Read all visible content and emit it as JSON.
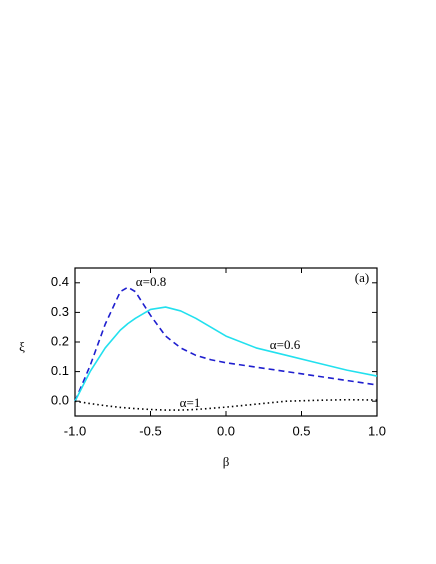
{
  "chart_data": {
    "type": "line",
    "title": "(a)",
    "x_label": "β",
    "y_label": "ξ",
    "x": [
      -1.0,
      -0.9,
      -0.8,
      -0.7,
      -0.65,
      -0.6,
      -0.5,
      -0.4,
      -0.3,
      -0.2,
      -0.1,
      0.0,
      0.2,
      0.4,
      0.6,
      0.8,
      1.0
    ],
    "series": [
      {
        "name": "α=0.8",
        "color": "#1f1fcf",
        "dash": "6,4",
        "values": [
          0.0,
          0.12,
          0.26,
          0.37,
          0.385,
          0.37,
          0.29,
          0.22,
          0.18,
          0.155,
          0.14,
          0.13,
          0.115,
          0.1,
          0.085,
          0.07,
          0.055
        ]
      },
      {
        "name": "α=0.6",
        "color": "#22e0ee",
        "dash": "none",
        "values": [
          0.0,
          0.1,
          0.18,
          0.24,
          0.262,
          0.28,
          0.31,
          0.318,
          0.305,
          0.28,
          0.25,
          0.22,
          0.18,
          0.155,
          0.13,
          0.105,
          0.085
        ]
      },
      {
        "name": "α=1",
        "color": "#000000",
        "dash": "1.5,3",
        "values": [
          0.0,
          -0.008,
          -0.015,
          -0.021,
          -0.023,
          -0.025,
          -0.028,
          -0.03,
          -0.03,
          -0.028,
          -0.024,
          -0.02,
          -0.01,
          0.0,
          0.003,
          0.005,
          0.004
        ]
      }
    ],
    "xlim": [
      -1.0,
      1.0
    ],
    "ylim": [
      -0.05,
      0.45
    ],
    "xticks": [
      {
        "value": -1.0,
        "label": "-1.0"
      },
      -0.5,
      {
        "value": 0.0,
        "label": "0.0"
      },
      0.5,
      {
        "value": 1.0,
        "label": "1.0"
      }
    ],
    "yticks": [
      {
        "value": 0.0,
        "label": "0.0"
      },
      0.1,
      0.2,
      0.3,
      0.4
    ],
    "grid": false
  }
}
